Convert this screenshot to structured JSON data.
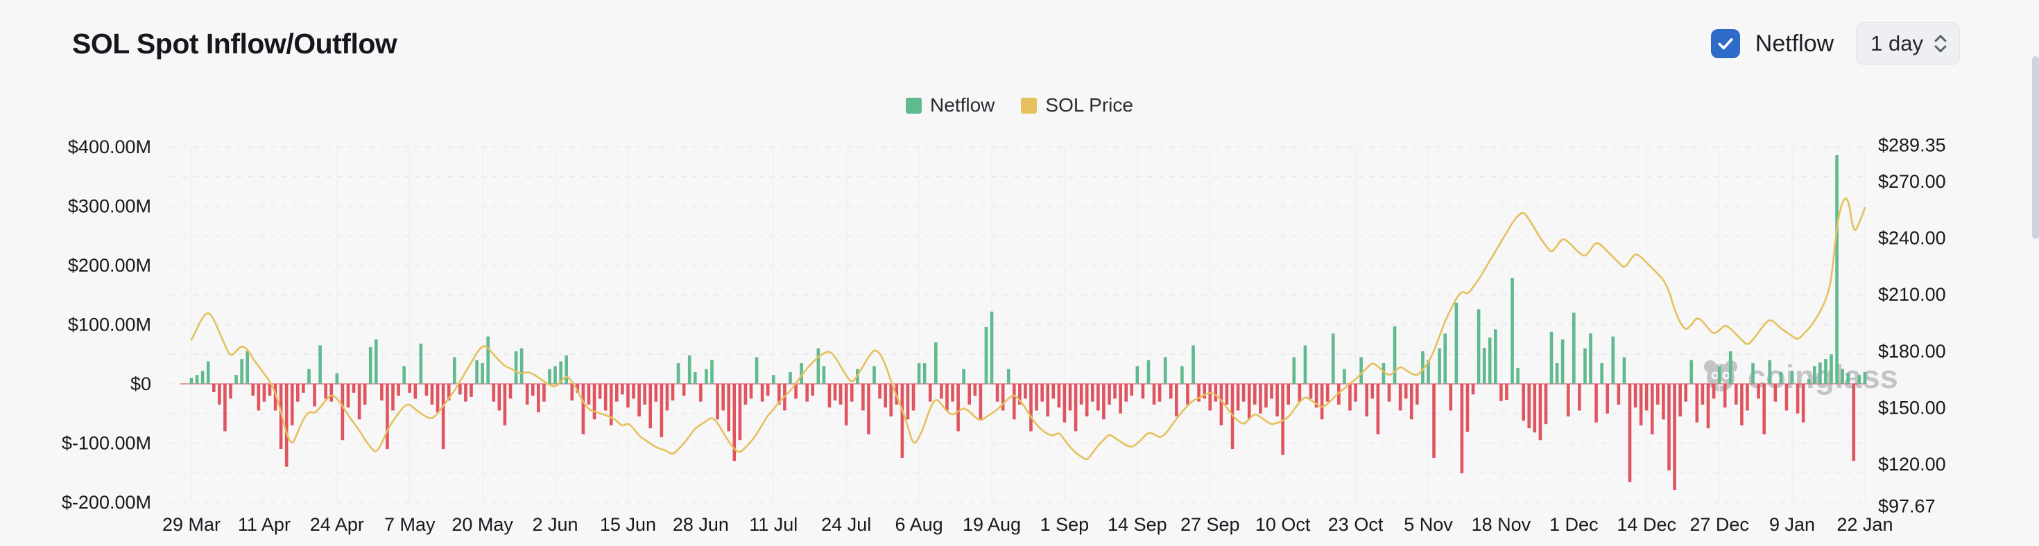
{
  "header": {
    "title": "SOL Spot Inflow/Outflow",
    "netflow_toggle": {
      "label": "Netflow",
      "checked": true,
      "color": "#2e6ac7"
    },
    "interval_select": {
      "value": "1 day"
    }
  },
  "legend": [
    {
      "label": "Netflow",
      "color": "#5fba8e"
    },
    {
      "label": "SOL Price",
      "color": "#e5c05c"
    }
  ],
  "watermark": {
    "text": "coinglass"
  },
  "chart_data": {
    "type": "bar+line",
    "title": "SOL Spot Inflow/Outflow",
    "x_tick_labels": [
      "29 Mar",
      "11 Apr",
      "24 Apr",
      "7 May",
      "20 May",
      "2 Jun",
      "15 Jun",
      "28 Jun",
      "11 Jul",
      "24 Jul",
      "6 Aug",
      "19 Aug",
      "1 Sep",
      "14 Sep",
      "27 Sep",
      "10 Oct",
      "23 Oct",
      "5 Nov",
      "18 Nov",
      "1 Dec",
      "14 Dec",
      "27 Dec",
      "9 Jan",
      "22 Jan"
    ],
    "days_per_tick": 13,
    "grid": {
      "dashed": true,
      "interval_millions": 50
    },
    "left_axis": {
      "unit": "USD millions (Netflow)",
      "ticks": [
        {
          "label": "$400.00M",
          "value": 400
        },
        {
          "label": "$300.00M",
          "value": 300
        },
        {
          "label": "$200.00M",
          "value": 200
        },
        {
          "label": "$100.00M",
          "value": 100
        },
        {
          "label": "$0",
          "value": 0
        },
        {
          "label": "$-100.00M",
          "value": -100
        },
        {
          "label": "$-200.00M",
          "value": -200
        }
      ],
      "min": -200,
      "max": 400
    },
    "right_axis": {
      "unit": "USD (SOL Price)",
      "ticks": [
        {
          "label": "$289.35",
          "value": 289.35
        },
        {
          "label": "$270.00",
          "value": 270
        },
        {
          "label": "$240.00",
          "value": 240
        },
        {
          "label": "$210.00",
          "value": 210
        },
        {
          "label": "$180.00",
          "value": 180
        },
        {
          "label": "$150.00",
          "value": 150
        },
        {
          "label": "$120.00",
          "value": 120
        },
        {
          "label": "$97.67",
          "value": 97.67
        }
      ],
      "min": 97.67,
      "max": 289.35
    },
    "series": [
      {
        "name": "Netflow",
        "type": "bar",
        "unit": "$M",
        "color_positive": "#5fba8e",
        "color_negative": "#e0545f",
        "values": [
          10,
          15,
          22,
          38,
          -14,
          -35,
          -80,
          -25,
          15,
          42,
          55,
          -20,
          -45,
          -30,
          -20,
          -45,
          -110,
          -140,
          -70,
          -30,
          -15,
          25,
          -38,
          65,
          -25,
          -30,
          18,
          -95,
          -40,
          -15,
          -60,
          -35,
          62,
          75,
          -28,
          -110,
          -45,
          -20,
          30,
          -15,
          -25,
          68,
          -20,
          -35,
          -48,
          -110,
          -28,
          45,
          -18,
          -30,
          -22,
          40,
          35,
          80,
          -30,
          -45,
          -70,
          -25,
          55,
          60,
          -35,
          -20,
          -48,
          -30,
          25,
          30,
          38,
          48,
          -28,
          -15,
          -85,
          -35,
          -60,
          -25,
          -45,
          -70,
          -30,
          -18,
          -40,
          -25,
          -55,
          -35,
          -75,
          -30,
          -90,
          -45,
          -28,
          35,
          -20,
          48,
          20,
          -30,
          25,
          40,
          -60,
          -45,
          -80,
          -130,
          -95,
          -35,
          -25,
          45,
          -30,
          -20,
          15,
          -35,
          -45,
          20,
          -25,
          35,
          -30,
          -20,
          60,
          30,
          -40,
          -28,
          -35,
          -70,
          -30,
          25,
          -45,
          -85,
          30,
          -25,
          -40,
          -55,
          -35,
          -125,
          -60,
          -45,
          35,
          35,
          -30,
          70,
          -25,
          -45,
          -30,
          -80,
          25,
          -35,
          -20,
          -60,
          96,
          122,
          -30,
          -45,
          25,
          -60,
          -35,
          -25,
          -80,
          -45,
          -30,
          -55,
          -25,
          -40,
          -65,
          -45,
          -80,
          -35,
          -55,
          -30,
          -45,
          -60,
          -35,
          -25,
          -50,
          -30,
          -20,
          30,
          -25,
          40,
          -35,
          -30,
          45,
          -25,
          -55,
          30,
          -35,
          65,
          -30,
          -25,
          -45,
          -30,
          -70,
          -35,
          -110,
          -45,
          -30,
          -60,
          -35,
          -50,
          -40,
          -25,
          -55,
          -120,
          -35,
          45,
          -30,
          65,
          -25,
          -40,
          -60,
          -30,
          85,
          -35,
          25,
          -45,
          -30,
          45,
          -55,
          -25,
          -85,
          35,
          -30,
          97,
          -45,
          -25,
          -60,
          -35,
          55,
          40,
          -125,
          60,
          85,
          -45,
          137,
          -151,
          -81,
          -18,
          126,
          61,
          78,
          92,
          -29,
          -27,
          179,
          27,
          -62,
          -75,
          -82,
          -95,
          -68,
          88,
          35,
          75,
          -55,
          120,
          -45,
          60,
          85,
          -65,
          35,
          -50,
          80,
          -35,
          45,
          -166,
          -40,
          -70,
          -45,
          -85,
          -35,
          -60,
          -146,
          -179,
          -55,
          -30,
          40,
          -65,
          -35,
          -75,
          -25,
          30,
          -40,
          55,
          -35,
          -70,
          -45,
          35,
          -25,
          -85,
          40,
          -30,
          20,
          -45,
          22,
          -50,
          -65,
          8,
          30,
          36,
          42,
          50,
          386,
          25,
          18,
          -130,
          15,
          20
        ]
      },
      {
        "name": "SOL Price",
        "type": "line",
        "unit": "$",
        "color": "#e5c05c",
        "values": [
          186,
          192,
          198,
          201,
          197,
          190,
          183,
          177,
          180,
          183,
          181,
          176,
          172,
          168,
          164,
          158,
          148,
          136,
          130,
          137,
          144,
          148,
          147,
          150,
          154,
          157,
          155,
          151,
          146,
          142,
          138,
          133,
          129,
          126,
          131,
          138,
          143,
          147,
          151,
          152,
          149,
          147,
          145,
          144,
          147,
          151,
          155,
          159,
          164,
          169,
          174,
          179,
          183,
          182,
          178,
          175,
          172,
          171,
          169,
          168,
          169,
          168,
          166,
          164,
          162,
          161,
          164,
          167,
          164,
          159,
          153,
          149,
          148,
          147,
          146,
          145,
          143,
          140,
          142,
          139,
          135,
          133,
          131,
          129,
          128,
          127,
          125,
          128,
          131,
          135,
          139,
          141,
          143,
          145,
          142,
          137,
          132,
          128,
          126,
          129,
          132,
          136,
          141,
          146,
          149,
          153,
          156,
          159,
          163,
          167,
          171,
          174,
          177,
          179,
          180,
          177,
          172,
          167,
          163,
          167,
          172,
          177,
          181,
          179,
          173,
          164,
          156,
          149,
          140,
          130,
          134,
          141,
          150,
          155,
          152,
          148,
          146,
          148,
          150,
          148,
          145,
          143,
          145,
          147,
          149,
          152,
          155,
          157,
          154,
          150,
          145,
          141,
          138,
          136,
          135,
          137,
          133,
          129,
          126,
          124,
          122,
          126,
          130,
          133,
          136,
          134,
          132,
          130,
          129,
          131,
          134,
          137,
          136,
          134,
          136,
          140,
          144,
          148,
          151,
          154,
          155,
          157,
          158,
          157,
          154,
          150,
          146,
          143,
          141,
          144,
          147,
          145,
          143,
          141,
          142,
          143,
          145,
          149,
          153,
          156,
          154,
          152,
          150,
          152,
          155,
          158,
          160,
          163,
          165,
          168,
          171,
          174,
          172,
          169,
          167,
          169,
          172,
          170,
          168,
          167,
          170,
          174,
          180,
          188,
          196,
          202,
          208,
          212,
          210,
          214,
          218,
          223,
          228,
          233,
          238,
          243,
          248,
          252,
          254,
          250,
          245,
          240,
          236,
          232,
          236,
          240,
          238,
          235,
          232,
          230,
          234,
          238,
          236,
          233,
          230,
          227,
          224,
          228,
          232,
          230,
          227,
          224,
          221,
          218,
          212,
          202,
          195,
          191,
          194,
          198,
          196,
          192,
          189,
          191,
          194,
          192,
          189,
          186,
          183,
          186,
          190,
          194,
          197,
          195,
          192,
          190,
          188,
          186,
          189,
          192,
          196,
          201,
          207,
          217,
          247,
          260,
          262,
          242,
          248,
          256
        ]
      }
    ]
  }
}
